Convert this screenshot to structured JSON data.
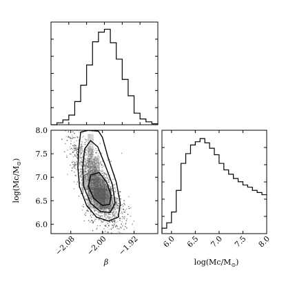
{
  "chart_data": [
    {
      "type": "histogram",
      "panel": "beta-marginal",
      "xlim": [
        -2.13,
        -1.86
      ],
      "bin_edges": [
        -2.13,
        -2.115,
        -2.1,
        -2.085,
        -2.07,
        -2.055,
        -2.04,
        -2.025,
        -2.01,
        -1.995,
        -1.98,
        -1.965,
        -1.95,
        -1.935,
        -1.92,
        -1.905,
        -1.89,
        -1.875,
        -1.86
      ],
      "counts": [
        0,
        0.02,
        0.05,
        0.1,
        0.24,
        0.41,
        0.62,
        0.86,
        0.96,
        0.99,
        0.85,
        0.68,
        0.47,
        0.3,
        0.12,
        0.06,
        0.03,
        0.01
      ]
    },
    {
      "type": "heatmap",
      "panel": "beta-vs-logMc-2d",
      "xlim": [
        -2.13,
        -1.86
      ],
      "ylim": [
        5.8,
        8.0
      ],
      "x_ticks": [
        "−2.08",
        "−2.00",
        "−1.92"
      ],
      "x_tick_values": [
        -2.08,
        -2.0,
        -1.92
      ],
      "y_ticks": [
        "6.0",
        "6.5",
        "7.0",
        "7.5",
        "8.0"
      ],
      "y_tick_values": [
        6.0,
        6.5,
        7.0,
        7.5,
        8.0
      ],
      "xlabel": "β",
      "ylabel": "log(Mc/M",
      "ylabel_sub": "⊙",
      "contours": [
        {
          "level": "outer",
          "points": [
            [
              -2.055,
              7.96
            ],
            [
              -2.06,
              7.6
            ],
            [
              -2.062,
              7.2
            ],
            [
              -2.058,
              6.8
            ],
            [
              -2.04,
              6.4
            ],
            [
              -2.015,
              6.15
            ],
            [
              -1.985,
              6.07
            ],
            [
              -1.96,
              6.15
            ],
            [
              -1.955,
              6.45
            ],
            [
              -1.965,
              6.9
            ],
            [
              -1.985,
              7.4
            ],
            [
              -2.0,
              7.85
            ],
            [
              -2.01,
              7.98
            ],
            [
              -2.035,
              8.0
            ]
          ]
        },
        {
          "level": "middle",
          "points": [
            [
              -2.045,
              7.6
            ],
            [
              -2.05,
              7.2
            ],
            [
              -2.047,
              6.8
            ],
            [
              -2.03,
              6.45
            ],
            [
              -2.005,
              6.27
            ],
            [
              -1.98,
              6.25
            ],
            [
              -1.968,
              6.45
            ],
            [
              -1.975,
              6.85
            ],
            [
              -1.995,
              7.3
            ],
            [
              -2.012,
              7.65
            ],
            [
              -2.03,
              7.78
            ]
          ]
        },
        {
          "level": "inner",
          "points": [
            [
              -2.03,
              7.05
            ],
            [
              -2.035,
              6.8
            ],
            [
              -2.022,
              6.55
            ],
            [
              -2.0,
              6.4
            ],
            [
              -1.982,
              6.42
            ],
            [
              -1.978,
              6.62
            ],
            [
              -1.99,
              6.9
            ],
            [
              -2.008,
              7.1
            ]
          ]
        }
      ]
    },
    {
      "type": "histogram",
      "panel": "logMc-marginal",
      "xlim": [
        5.8,
        8.0
      ],
      "x_ticks": [
        "6.0",
        "6.5",
        "7.0",
        "7.5",
        "8.0"
      ],
      "x_tick_values": [
        6.0,
        6.5,
        7.0,
        7.5,
        8.0
      ],
      "xlabel": "log(Mc/M",
      "xlabel_sub": "⊙",
      "bin_edges": [
        5.8,
        5.9,
        6.0,
        6.1,
        6.2,
        6.3,
        6.4,
        6.5,
        6.6,
        6.7,
        6.8,
        6.9,
        7.0,
        7.1,
        7.2,
        7.3,
        7.4,
        7.5,
        7.6,
        7.7,
        7.8,
        7.9,
        8.0
      ],
      "counts": [
        0.05,
        0.1,
        0.2,
        0.4,
        0.65,
        0.74,
        0.82,
        0.85,
        0.88,
        0.84,
        0.79,
        0.73,
        0.65,
        0.59,
        0.55,
        0.51,
        0.48,
        0.45,
        0.43,
        0.4,
        0.38,
        0.36
      ]
    }
  ]
}
